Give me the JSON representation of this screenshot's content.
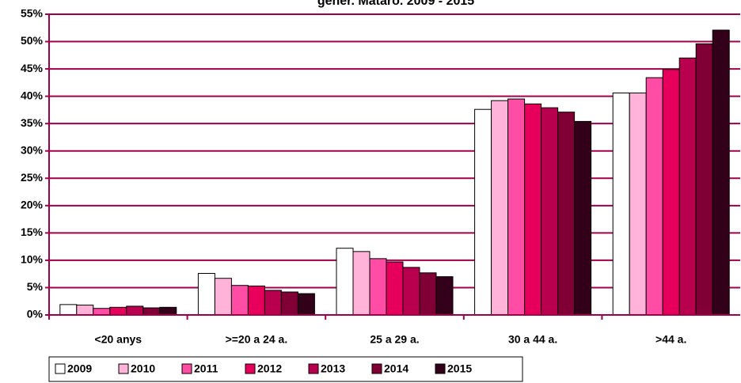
{
  "chart_data": {
    "type": "bar",
    "title": "gener. Mataró. 2009 - 2015",
    "categories": [
      "<20 anys",
      ">=20 a 24 a.",
      "25 a 29 a.",
      "30 a 44 a.",
      ">44 a."
    ],
    "series": [
      {
        "name": "2009",
        "color": "#ffffff",
        "values": [
          1.9,
          7.6,
          12.2,
          37.6,
          40.6
        ]
      },
      {
        "name": "2010",
        "color": "#ffb3d9",
        "values": [
          1.8,
          6.7,
          11.6,
          39.2,
          40.6
        ]
      },
      {
        "name": "2011",
        "color": "#ff4da6",
        "values": [
          1.2,
          5.4,
          10.3,
          39.5,
          43.4
        ]
      },
      {
        "name": "2012",
        "color": "#e6005c",
        "values": [
          1.4,
          5.3,
          9.7,
          38.6,
          44.9
        ]
      },
      {
        "name": "2013",
        "color": "#b8004f",
        "values": [
          1.6,
          4.5,
          8.7,
          37.9,
          47.0
        ]
      },
      {
        "name": "2014",
        "color": "#800035",
        "values": [
          1.3,
          4.2,
          7.7,
          37.1,
          49.6
        ]
      },
      {
        "name": "2015",
        "color": "#33001a",
        "values": [
          1.4,
          3.9,
          7.0,
          35.4,
          52.1
        ]
      }
    ],
    "ylim": [
      0,
      55
    ],
    "yticks": [
      {
        "value": 0,
        "label": "0%"
      },
      {
        "value": 5,
        "label": "5%"
      },
      {
        "value": 10,
        "label": "10%"
      },
      {
        "value": 15,
        "label": "15%"
      },
      {
        "value": 20,
        "label": "20%"
      },
      {
        "value": 25,
        "label": "25%"
      },
      {
        "value": 30,
        "label": "30%"
      },
      {
        "value": 35,
        "label": "35%"
      },
      {
        "value": 40,
        "label": "40%"
      },
      {
        "value": 45,
        "label": "45%"
      },
      {
        "value": 50,
        "label": "50%"
      },
      {
        "value": 55,
        "label": "55%"
      }
    ],
    "grid": true,
    "legend": "bottom"
  }
}
